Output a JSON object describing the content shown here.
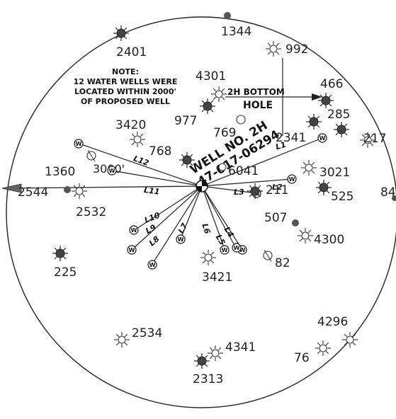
{
  "map": {
    "note": {
      "line1": "NOTE:",
      "line2": "12 WATER WELLS WERE",
      "line3": "LOCATED WITHIN 2000'",
      "line4": "OF PROPOSED WELL"
    },
    "proposed_well": {
      "name": "WELL NO. 2H",
      "api": "47-017-06294"
    },
    "bottom_hole": {
      "line1": "2H BOTTOM",
      "line2": "HOLE"
    },
    "radius_label": "3000'",
    "water_well_symbol": "W",
    "line_labels": [
      "L1",
      "L2",
      "L3",
      "L4",
      "L5",
      "L6",
      "L7",
      "L8",
      "L9",
      "L10",
      "L11",
      "L12"
    ],
    "well_labels": {
      "w1344": "1344",
      "w2401": "2401",
      "w992": "992",
      "w4301": "4301",
      "w466": "466",
      "w977": "977",
      "w285": "285",
      "w3420": "3420",
      "w769": "769",
      "w2341": "2341",
      "w217": "217",
      "w768": "768",
      "w1360": "1360",
      "w3021": "3021",
      "w6041": "6041",
      "w211": "211",
      "w2544": "2544",
      "w84": "84",
      "w525": "525",
      "w2532": "2532",
      "w507": "507",
      "w4300": "4300",
      "w82": "82",
      "w225": "225",
      "w3421": "3421",
      "w4296": "4296",
      "w2534": "2534",
      "w4341": "4341",
      "w76": "76",
      "w2313": "2313"
    }
  }
}
